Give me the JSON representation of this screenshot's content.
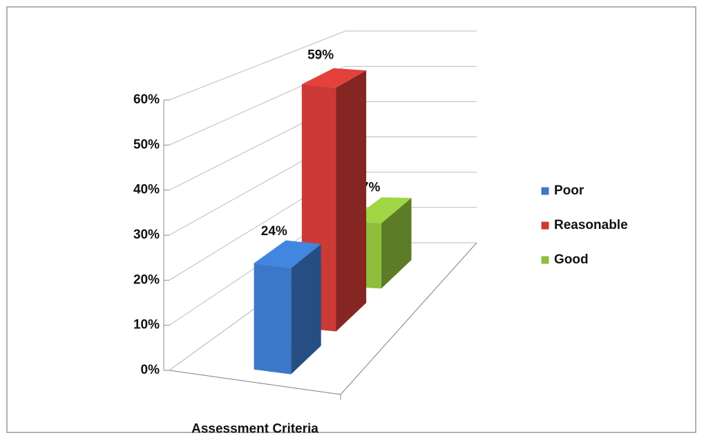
{
  "chart_data": {
    "type": "bar",
    "categories": [
      "Assessment Criteria"
    ],
    "series": [
      {
        "name": "Poor",
        "color": "#3b78c8",
        "values": [
          24
        ],
        "value_labels": [
          "24%"
        ]
      },
      {
        "name": "Reasonable",
        "color": "#cc3a36",
        "values": [
          59
        ],
        "value_labels": [
          "59%"
        ]
      },
      {
        "name": "Good",
        "color": "#8fbe3c",
        "values": [
          17
        ],
        "value_labels": [
          "17%"
        ]
      }
    ],
    "ylim": [
      0,
      60
    ],
    "yticks": [
      {
        "value": 0,
        "label": "0%"
      },
      {
        "value": 10,
        "label": "10%"
      },
      {
        "value": 20,
        "label": "20%"
      },
      {
        "value": 30,
        "label": "30%"
      },
      {
        "value": 40,
        "label": "40%"
      },
      {
        "value": 50,
        "label": "50%"
      },
      {
        "value": 60,
        "label": "60%"
      }
    ],
    "grid": true,
    "legend": "right"
  }
}
